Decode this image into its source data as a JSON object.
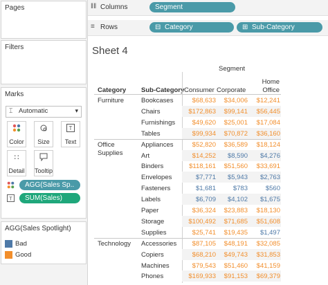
{
  "left": {
    "pages_title": "Pages",
    "filters_title": "Filters",
    "marks_title": "Marks",
    "marks_type": "Automatic",
    "mark_buttons": [
      "Color",
      "Size",
      "Text",
      "Detail",
      "Tooltip"
    ],
    "mark_fields": [
      "AGG(Sales Sp..",
      "SUM(Sales)"
    ],
    "legend_title": "AGG(Sales Spotlight)",
    "legend_items": [
      {
        "label": "Bad",
        "color": "#4e79a7"
      },
      {
        "label": "Good",
        "color": "#f28e2b"
      }
    ]
  },
  "shelves": {
    "columns_label": "Columns",
    "columns_pill": "Segment",
    "rows_label": "Rows",
    "rows_pills": [
      "Category",
      "Sub-Category"
    ]
  },
  "sheet": {
    "title": "Sheet 4",
    "segment_header": "Segment",
    "col_category": "Category",
    "col_subcategory": "Sub-Category",
    "segments": [
      "Consumer",
      "Corporate",
      "Home\nOffice"
    ]
  },
  "table": [
    {
      "category": "Furniture",
      "rows": [
        {
          "sub": "Bookcases",
          "values": [
            "$68,633",
            "$34,006",
            "$12,241"
          ],
          "good": [
            true,
            true,
            true
          ]
        },
        {
          "sub": "Chairs",
          "values": [
            "$172,863",
            "$99,141",
            "$56,445"
          ],
          "good": [
            true,
            true,
            true
          ]
        },
        {
          "sub": "Furnishings",
          "values": [
            "$49,620",
            "$25,001",
            "$17,084"
          ],
          "good": [
            true,
            true,
            true
          ]
        },
        {
          "sub": "Tables",
          "values": [
            "$99,934",
            "$70,872",
            "$36,160"
          ],
          "good": [
            true,
            true,
            true
          ]
        }
      ]
    },
    {
      "category": "Office Supplies",
      "rows": [
        {
          "sub": "Appliances",
          "values": [
            "$52,820",
            "$36,589",
            "$18,124"
          ],
          "good": [
            true,
            true,
            true
          ]
        },
        {
          "sub": "Art",
          "values": [
            "$14,252",
            "$8,590",
            "$4,276"
          ],
          "good": [
            true,
            false,
            false
          ]
        },
        {
          "sub": "Binders",
          "values": [
            "$118,161",
            "$51,560",
            "$33,691"
          ],
          "good": [
            true,
            true,
            true
          ]
        },
        {
          "sub": "Envelopes",
          "values": [
            "$7,771",
            "$5,943",
            "$2,763"
          ],
          "good": [
            false,
            false,
            false
          ]
        },
        {
          "sub": "Fasteners",
          "values": [
            "$1,681",
            "$783",
            "$560"
          ],
          "good": [
            false,
            false,
            false
          ]
        },
        {
          "sub": "Labels",
          "values": [
            "$6,709",
            "$4,102",
            "$1,675"
          ],
          "good": [
            false,
            false,
            false
          ]
        },
        {
          "sub": "Paper",
          "values": [
            "$36,324",
            "$23,883",
            "$18,130"
          ],
          "good": [
            true,
            true,
            true
          ]
        },
        {
          "sub": "Storage",
          "values": [
            "$100,492",
            "$71,685",
            "$51,608"
          ],
          "good": [
            true,
            true,
            true
          ]
        },
        {
          "sub": "Supplies",
          "values": [
            "$25,741",
            "$19,435",
            "$1,497"
          ],
          "good": [
            true,
            true,
            false
          ]
        }
      ]
    },
    {
      "category": "Technology",
      "rows": [
        {
          "sub": "Accessories",
          "values": [
            "$87,105",
            "$48,191",
            "$32,085"
          ],
          "good": [
            true,
            true,
            true
          ]
        },
        {
          "sub": "Copiers",
          "values": [
            "$68,210",
            "$49,743",
            "$31,853"
          ],
          "good": [
            true,
            true,
            true
          ]
        },
        {
          "sub": "Machines",
          "values": [
            "$79,543",
            "$51,460",
            "$41,159"
          ],
          "good": [
            true,
            true,
            true
          ]
        },
        {
          "sub": "Phones",
          "values": [
            "$169,933",
            "$91,153",
            "$69,379"
          ],
          "good": [
            true,
            true,
            true
          ]
        }
      ]
    }
  ]
}
